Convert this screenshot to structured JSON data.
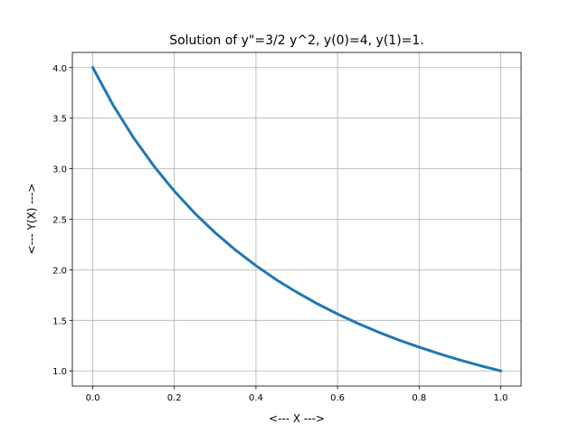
{
  "chart_data": {
    "type": "line",
    "title": "Solution of y\"=3/2 y^2, y(0)=4, y(1)=1.",
    "xlabel": "<--- X --->",
    "ylabel": "<--- Y(X) --->",
    "x": [
      0,
      0.05,
      0.1,
      0.15,
      0.2,
      0.25,
      0.3,
      0.35,
      0.4,
      0.45,
      0.5,
      0.55,
      0.6,
      0.65,
      0.7,
      0.75,
      0.8,
      0.85,
      0.9,
      0.95,
      1.0
    ],
    "series": [
      {
        "color": "#1f77b4",
        "values": [
          4,
          3.628,
          3.306,
          3.025,
          2.778,
          2.56,
          2.367,
          2.195,
          2.041,
          1.902,
          1.778,
          1.665,
          1.563,
          1.469,
          1.384,
          1.306,
          1.235,
          1.169,
          1.108,
          1.052,
          1
        ]
      }
    ],
    "xlim": [
      -0.05,
      1.05
    ],
    "ylim": [
      0.85,
      4.15
    ],
    "xticks": [
      {
        "value": 0,
        "label": "0.0"
      },
      0.2,
      0.4,
      0.6,
      0.8,
      {
        "value": 1,
        "label": "1.0"
      }
    ],
    "yticks": [
      {
        "value": 1,
        "label": "1.0"
      },
      1.5,
      {
        "value": 2,
        "label": "2.0"
      },
      2.5,
      {
        "value": 3,
        "label": "3.0"
      },
      3.5,
      {
        "value": 4,
        "label": "4.0"
      }
    ],
    "grid": true
  }
}
